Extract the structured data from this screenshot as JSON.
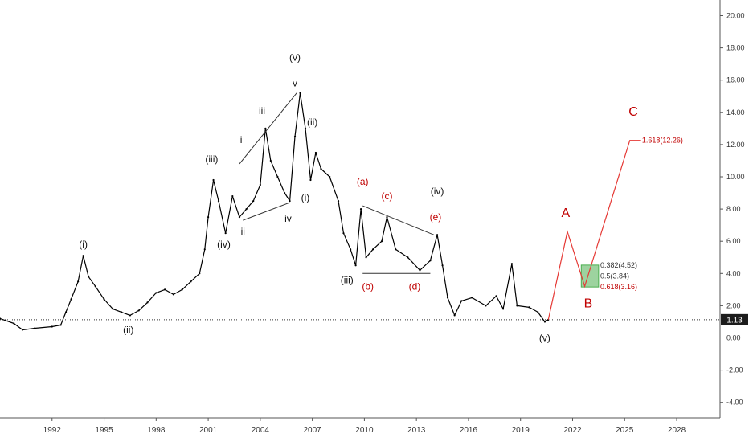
{
  "chart_data": {
    "type": "line",
    "x_range": [
      1989.0,
      2030.5
    ],
    "ylim": [
      -5.0,
      21.0
    ],
    "y_ticks": [
      "20.00",
      "18.00",
      "16.00",
      "14.00",
      "12.00",
      "10.00",
      "8.00",
      "6.00",
      "4.00",
      "2.00",
      "0.00",
      "-2.00",
      "-4.00"
    ],
    "x_ticks": [
      "1992",
      "1995",
      "1998",
      "2001",
      "2004",
      "2007",
      "2010",
      "2013",
      "2016",
      "2019",
      "2022",
      "2025",
      "2028"
    ],
    "last_price": "1.13",
    "colors": {
      "price": "#000000",
      "projection": "#e53935",
      "fib_zone": "#4caf50",
      "wave_red": "#c00000",
      "price_label_bg": "#1c1c1c"
    },
    "price_series": [
      [
        1989.0,
        1.2
      ],
      [
        1989.8,
        0.9
      ],
      [
        1990.3,
        0.5
      ],
      [
        1991.0,
        0.6
      ],
      [
        1992.0,
        0.7
      ],
      [
        1992.5,
        0.8
      ],
      [
        1992.8,
        1.6
      ],
      [
        1993.1,
        2.4
      ],
      [
        1993.5,
        3.5
      ],
      [
        1993.8,
        5.1
      ],
      [
        1994.1,
        3.8
      ],
      [
        1994.5,
        3.2
      ],
      [
        1995.0,
        2.4
      ],
      [
        1995.5,
        1.8
      ],
      [
        1996.0,
        1.6
      ],
      [
        1996.5,
        1.4
      ],
      [
        1997.0,
        1.7
      ],
      [
        1997.5,
        2.2
      ],
      [
        1998.0,
        2.8
      ],
      [
        1998.5,
        3.0
      ],
      [
        1999.0,
        2.7
      ],
      [
        1999.5,
        3.0
      ],
      [
        2000.0,
        3.5
      ],
      [
        2000.5,
        4.0
      ],
      [
        2000.8,
        5.5
      ],
      [
        2001.0,
        7.5
      ],
      [
        2001.3,
        9.8
      ],
      [
        2001.6,
        8.5
      ],
      [
        2002.0,
        6.5
      ],
      [
        2002.4,
        8.8
      ],
      [
        2002.8,
        7.5
      ],
      [
        2003.2,
        8.0
      ],
      [
        2003.6,
        8.5
      ],
      [
        2004.0,
        9.5
      ],
      [
        2004.3,
        13.0
      ],
      [
        2004.6,
        11.0
      ],
      [
        2005.0,
        10.0
      ],
      [
        2005.4,
        9.0
      ],
      [
        2005.7,
        8.5
      ],
      [
        2006.0,
        12.5
      ],
      [
        2006.3,
        15.2
      ],
      [
        2006.6,
        13.0
      ],
      [
        2006.9,
        9.8
      ],
      [
        2007.2,
        11.5
      ],
      [
        2007.5,
        10.5
      ],
      [
        2008.0,
        10.0
      ],
      [
        2008.5,
        8.5
      ],
      [
        2008.8,
        6.5
      ],
      [
        2009.2,
        5.5
      ],
      [
        2009.5,
        4.5
      ],
      [
        2009.8,
        8.0
      ],
      [
        2010.1,
        5.0
      ],
      [
        2010.5,
        5.5
      ],
      [
        2011.0,
        6.0
      ],
      [
        2011.3,
        7.5
      ],
      [
        2011.8,
        5.5
      ],
      [
        2012.5,
        5.0
      ],
      [
        2013.2,
        4.2
      ],
      [
        2013.8,
        4.8
      ],
      [
        2014.2,
        6.4
      ],
      [
        2014.5,
        4.5
      ],
      [
        2014.8,
        2.5
      ],
      [
        2015.2,
        1.4
      ],
      [
        2015.6,
        2.3
      ],
      [
        2016.2,
        2.5
      ],
      [
        2017.0,
        2.0
      ],
      [
        2017.6,
        2.6
      ],
      [
        2018.0,
        1.8
      ],
      [
        2018.5,
        4.6
      ],
      [
        2018.8,
        2.0
      ],
      [
        2019.5,
        1.9
      ],
      [
        2020.0,
        1.6
      ],
      [
        2020.4,
        1.0
      ],
      [
        2020.6,
        1.13
      ]
    ],
    "projection": [
      [
        2020.6,
        1.13
      ],
      [
        2021.7,
        6.6
      ],
      [
        2022.7,
        3.2
      ],
      [
        2025.3,
        12.26
      ],
      [
        2025.9,
        12.26
      ]
    ],
    "trendlines": [
      [
        [
          2002.8,
          10.8
        ],
        [
          2006.1,
          15.2
        ]
      ],
      [
        [
          2003.0,
          7.3
        ],
        [
          2005.7,
          8.4
        ]
      ],
      [
        [
          2009.9,
          8.2
        ],
        [
          2014.0,
          6.4
        ]
      ],
      [
        [
          2009.9,
          4.0
        ],
        [
          2013.8,
          4.0
        ]
      ],
      [
        [
          2022.8,
          3.84
        ],
        [
          2023.2,
          3.84
        ]
      ]
    ],
    "fib_zone": {
      "x0": 2022.5,
      "x1": 2023.5,
      "y0": 3.16,
      "y1": 4.52
    },
    "fib_levels": [
      {
        "label": "0.382(4.52)",
        "y": 4.52,
        "color": "black"
      },
      {
        "label": "0.5(3.84)",
        "y": 3.84,
        "color": "black"
      },
      {
        "label": "0.618(3.16)",
        "y": 3.16,
        "color": "red"
      },
      {
        "label": "1.618(12.26)",
        "y": 12.26,
        "color": "red"
      }
    ],
    "wave_labels": [
      {
        "text": "(i)",
        "x": 1993.8,
        "y": 5.6,
        "style": "black"
      },
      {
        "text": "(ii)",
        "x": 1996.4,
        "y": 0.3,
        "style": "black"
      },
      {
        "text": "(iii)",
        "x": 2001.2,
        "y": 10.9,
        "style": "black"
      },
      {
        "text": "(iv)",
        "x": 2001.9,
        "y": 5.6,
        "style": "black"
      },
      {
        "text": "i",
        "x": 2002.9,
        "y": 12.1,
        "style": "black"
      },
      {
        "text": "ii",
        "x": 2003.0,
        "y": 6.4,
        "style": "black"
      },
      {
        "text": "iii",
        "x": 2004.1,
        "y": 13.9,
        "style": "black"
      },
      {
        "text": "iv",
        "x": 2005.6,
        "y": 7.2,
        "style": "black"
      },
      {
        "text": "(v)",
        "x": 2006.0,
        "y": 17.2,
        "style": "black"
      },
      {
        "text": "v",
        "x": 2006.0,
        "y": 15.6,
        "style": "black"
      },
      {
        "text": "(ii)",
        "x": 2007.0,
        "y": 13.2,
        "style": "black"
      },
      {
        "text": "(i)",
        "x": 2006.6,
        "y": 8.5,
        "style": "black"
      },
      {
        "text": "(iii)",
        "x": 2009.0,
        "y": 3.4,
        "style": "black"
      },
      {
        "text": "(a)",
        "x": 2009.9,
        "y": 9.5,
        "style": "red"
      },
      {
        "text": "(c)",
        "x": 2011.3,
        "y": 8.6,
        "style": "red"
      },
      {
        "text": "(iv)",
        "x": 2014.2,
        "y": 8.9,
        "style": "black"
      },
      {
        "text": "(e)",
        "x": 2014.1,
        "y": 7.3,
        "style": "red"
      },
      {
        "text": "(b)",
        "x": 2010.2,
        "y": 3.0,
        "style": "red"
      },
      {
        "text": "(d)",
        "x": 2012.9,
        "y": 3.0,
        "style": "red"
      },
      {
        "text": "(v)",
        "x": 2020.4,
        "y": -0.2,
        "style": "black"
      },
      {
        "text": "A",
        "x": 2021.6,
        "y": 7.5,
        "style": "red-big"
      },
      {
        "text": "B",
        "x": 2022.9,
        "y": 1.9,
        "style": "red-big"
      },
      {
        "text": "C",
        "x": 2025.5,
        "y": 13.8,
        "style": "red-big"
      }
    ]
  }
}
